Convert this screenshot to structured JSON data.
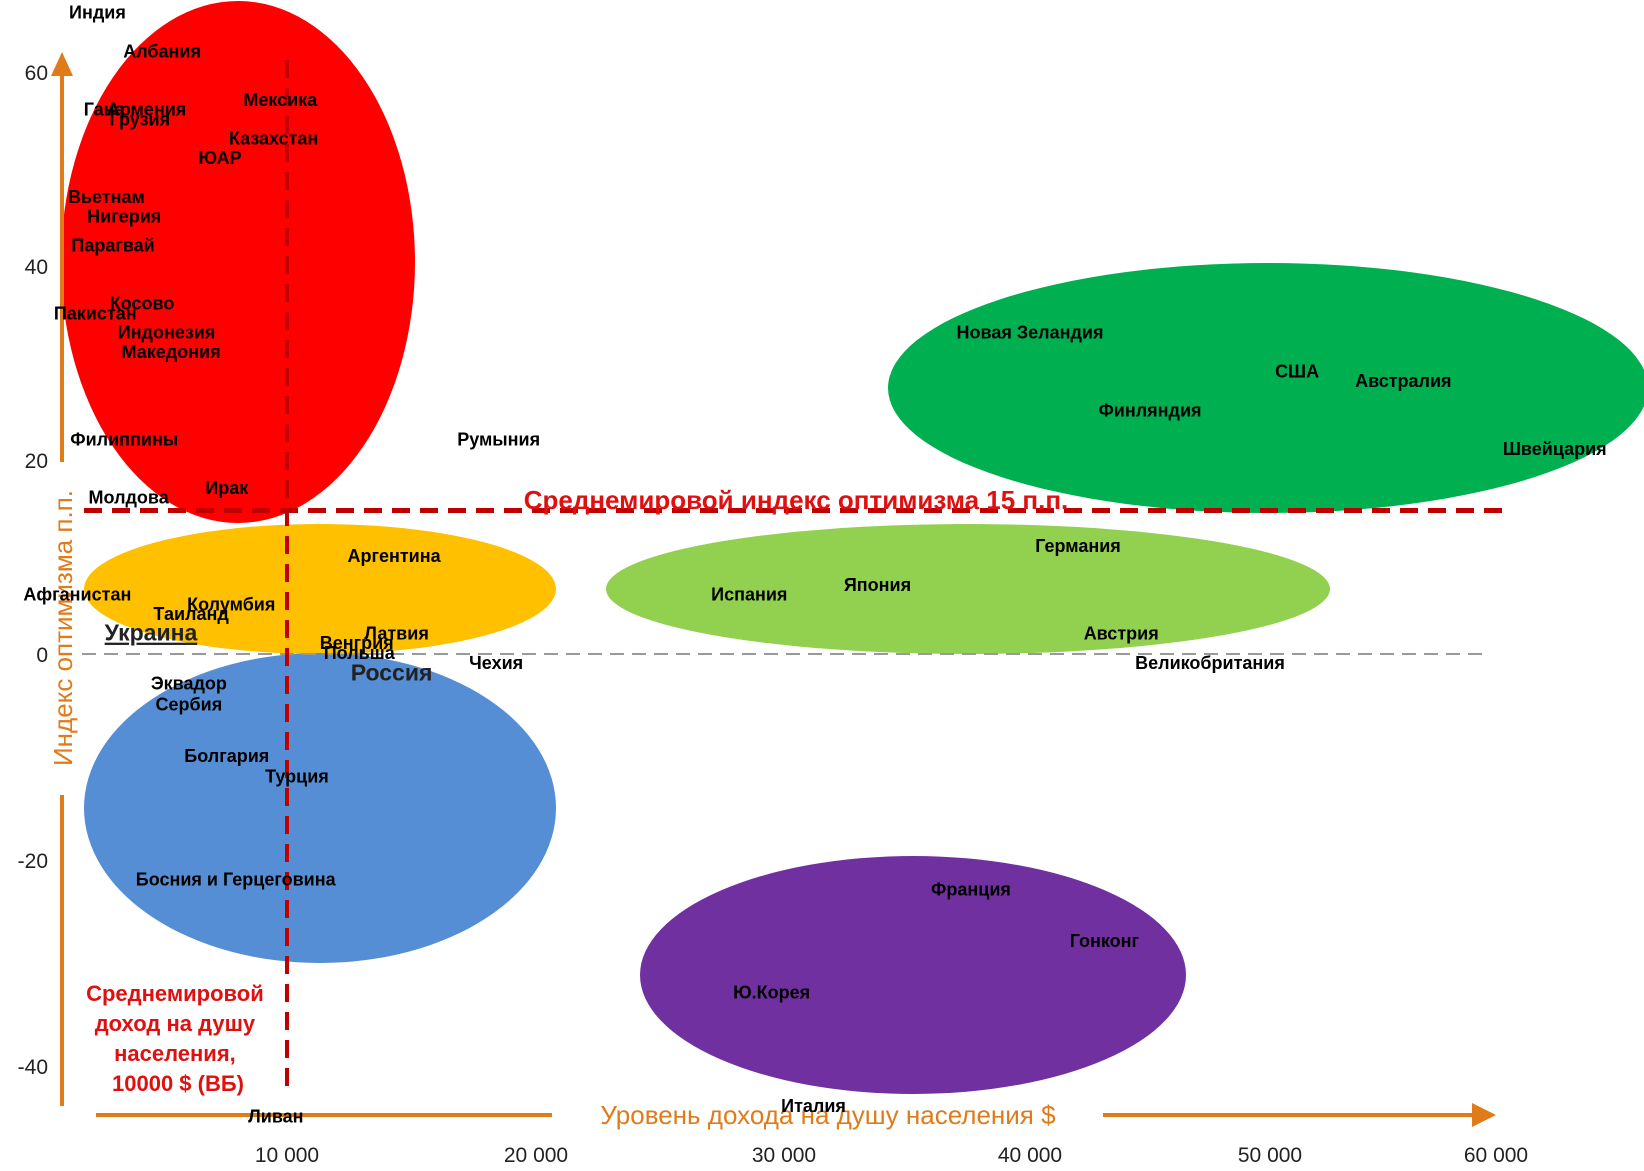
{
  "colors": {
    "axis": "#E07B1A",
    "average_line": "#C00000",
    "zero_line": "#999999",
    "average_text": "#E01010"
  },
  "chart_data": {
    "type": "scatter",
    "title": "",
    "xlabel": "Уровень дохода на душу населения $",
    "ylabel": "Индекс оптимизма п.п.",
    "x_ticks": [
      "10 000",
      "20 000",
      "30 000",
      "40 000",
      "50 000",
      "60 000"
    ],
    "y_ticks": [
      "60",
      "40",
      "20",
      "0",
      "-20",
      "-40"
    ],
    "reference_lines": {
      "optimism_label": "Среднемировой индекс оптимизма 15 п.п.",
      "optimism_value": 15,
      "income_label_lines": [
        "Среднемировой",
        "доход на душу",
        "населения,",
        "10000 $ (ВБ)"
      ],
      "income_value": 10000
    },
    "groups": [
      {
        "name": "red-cluster",
        "color": "#FF0000"
      },
      {
        "name": "yellow-cluster",
        "color": "#FFC000"
      },
      {
        "name": "blue-cluster",
        "color": "#558ED5"
      },
      {
        "name": "dark-green-cluster",
        "color": "#00B050"
      },
      {
        "name": "light-green-cluster",
        "color": "#92D050"
      },
      {
        "name": "purple-cluster",
        "color": "#7030A0"
      }
    ],
    "points": [
      {
        "label": "Индия",
        "x": 1500,
        "y": 66
      },
      {
        "label": "Албания",
        "x": 4400,
        "y": 62
      },
      {
        "label": "Гана",
        "x": 1800,
        "y": 56
      },
      {
        "label": "Армения",
        "x": 3700,
        "y": 56
      },
      {
        "label": "Грузия",
        "x": 3400,
        "y": 55
      },
      {
        "label": "Мексика",
        "x": 9700,
        "y": 57
      },
      {
        "label": "Казахстан",
        "x": 9400,
        "y": 53
      },
      {
        "label": "ЮАР",
        "x": 7000,
        "y": 51
      },
      {
        "label": "Вьетнам",
        "x": 1900,
        "y": 47
      },
      {
        "label": "Нигерия",
        "x": 2700,
        "y": 45
      },
      {
        "label": "Парагвай",
        "x": 2200,
        "y": 42
      },
      {
        "label": "Косово",
        "x": 3500,
        "y": 36
      },
      {
        "label": "Пакистан",
        "x": 1400,
        "y": 35
      },
      {
        "label": "Индонезия",
        "x": 4600,
        "y": 33
      },
      {
        "label": "Македония",
        "x": 4800,
        "y": 31
      },
      {
        "label": "Филиппины",
        "x": 2700,
        "y": 22
      },
      {
        "label": "Румыния",
        "x": 18500,
        "y": 22
      },
      {
        "label": "Ирак",
        "x": 7300,
        "y": 17
      },
      {
        "label": "Молдова",
        "x": 2900,
        "y": 16
      },
      {
        "label": "Аргентина",
        "x": 14300,
        "y": 10
      },
      {
        "label": "Афганистан",
        "x": 600,
        "y": 6
      },
      {
        "label": "Колумбия",
        "x": 7500,
        "y": 5
      },
      {
        "label": "Таиланд",
        "x": 5700,
        "y": 4
      },
      {
        "label": "Украина",
        "x": 3900,
        "y": 2,
        "emphasis": true
      },
      {
        "label": "Латвия",
        "x": 14400,
        "y": 2
      },
      {
        "label": "Венгрия",
        "x": 12800,
        "y": 1
      },
      {
        "label": "Польша",
        "x": 12900,
        "y": 0
      },
      {
        "label": "Россия",
        "x": 14200,
        "y": -2,
        "emphasis": true
      },
      {
        "label": "Чехия",
        "x": 18400,
        "y": -1
      },
      {
        "label": "Эквадор",
        "x": 5600,
        "y": -3
      },
      {
        "label": "Сербия",
        "x": 5600,
        "y": -5
      },
      {
        "label": "Болгария",
        "x": 7300,
        "y": -10
      },
      {
        "label": "Турция",
        "x": 10400,
        "y": -12
      },
      {
        "label": "Босния и Герцеговина",
        "x": 7700,
        "y": -22
      },
      {
        "label": "Ливан",
        "x": 9500,
        "y": -45
      },
      {
        "label": "Новая Зеландия",
        "x": 40000,
        "y": 33
      },
      {
        "label": "США",
        "x": 51200,
        "y": 29
      },
      {
        "label": "Австралия",
        "x": 55900,
        "y": 28
      },
      {
        "label": "Финляндия",
        "x": 45000,
        "y": 25
      },
      {
        "label": "Швейцария",
        "x": 62600,
        "y": 21
      },
      {
        "label": "Германия",
        "x": 42000,
        "y": 11
      },
      {
        "label": "Япония",
        "x": 33800,
        "y": 7
      },
      {
        "label": "Испания",
        "x": 28600,
        "y": 6
      },
      {
        "label": "Австрия",
        "x": 43800,
        "y": 2
      },
      {
        "label": "Великобритания",
        "x": 47500,
        "y": -1
      },
      {
        "label": "Франция",
        "x": 37600,
        "y": -23
      },
      {
        "label": "Гонконг",
        "x": 43100,
        "y": -28
      },
      {
        "label": "Ю.Корея",
        "x": 29500,
        "y": -33
      },
      {
        "label": "Италия",
        "x": 31200,
        "y": -44
      }
    ]
  }
}
